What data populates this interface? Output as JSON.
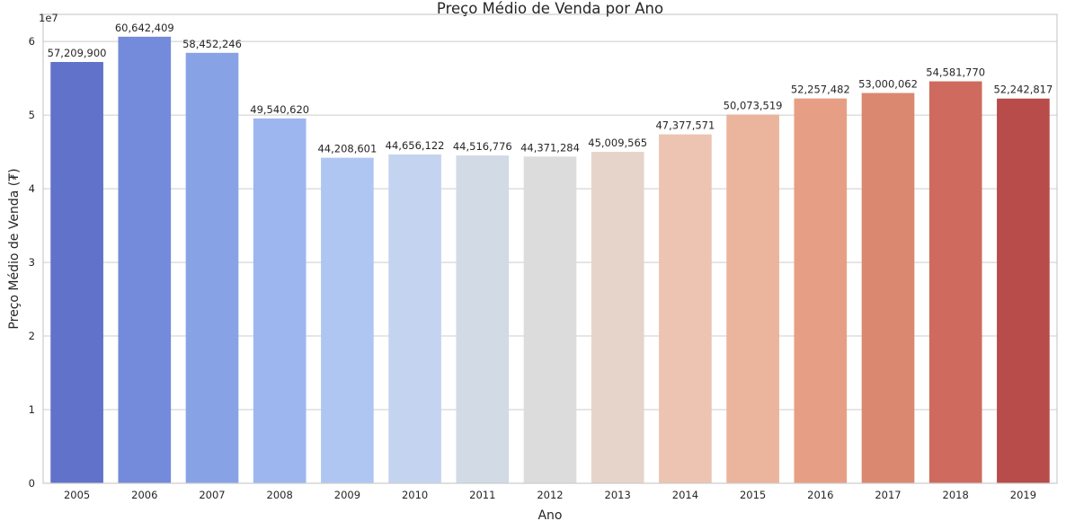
{
  "chart_data": {
    "type": "bar",
    "title": "Preço Médio de Venda por Ano",
    "xlabel": "Ano",
    "ylabel": "Preço Médio de Venda (₮)",
    "y_offset_label": "1e7",
    "ylim": [
      0,
      63675529
    ],
    "yticks": [
      0,
      10000000,
      20000000,
      30000000,
      40000000,
      50000000,
      60000000
    ],
    "ytick_labels": [
      "0",
      "1",
      "2",
      "3",
      "4",
      "5",
      "6"
    ],
    "grid": true,
    "categories": [
      "2005",
      "2006",
      "2007",
      "2008",
      "2009",
      "2010",
      "2011",
      "2012",
      "2013",
      "2014",
      "2015",
      "2016",
      "2017",
      "2018",
      "2019"
    ],
    "values": [
      57209900,
      60642409,
      58452246,
      49540620,
      44208601,
      44656122,
      44516776,
      44371284,
      45009565,
      47377571,
      50073519,
      52257482,
      53000062,
      54581770,
      52242817
    ],
    "value_labels": [
      "57,209,900",
      "60,642,409",
      "58,452,246",
      "49,540,620",
      "44,208,601",
      "44,656,122",
      "44,516,776",
      "44,371,284",
      "45,009,565",
      "47,377,571",
      "50,073,519",
      "52,257,482",
      "53,000,062",
      "54,581,770",
      "52,242,817"
    ],
    "colors": [
      "#6072c9",
      "#748ada",
      "#88a2e6",
      "#9db6f0",
      "#b0c6f2",
      "#c4d4f0",
      "#d2dae6",
      "#dcdcdc",
      "#e6d4ca",
      "#ecc4b1",
      "#ebb49c",
      "#e69f84",
      "#da886f",
      "#ce6b5e",
      "#b84c4a"
    ]
  }
}
